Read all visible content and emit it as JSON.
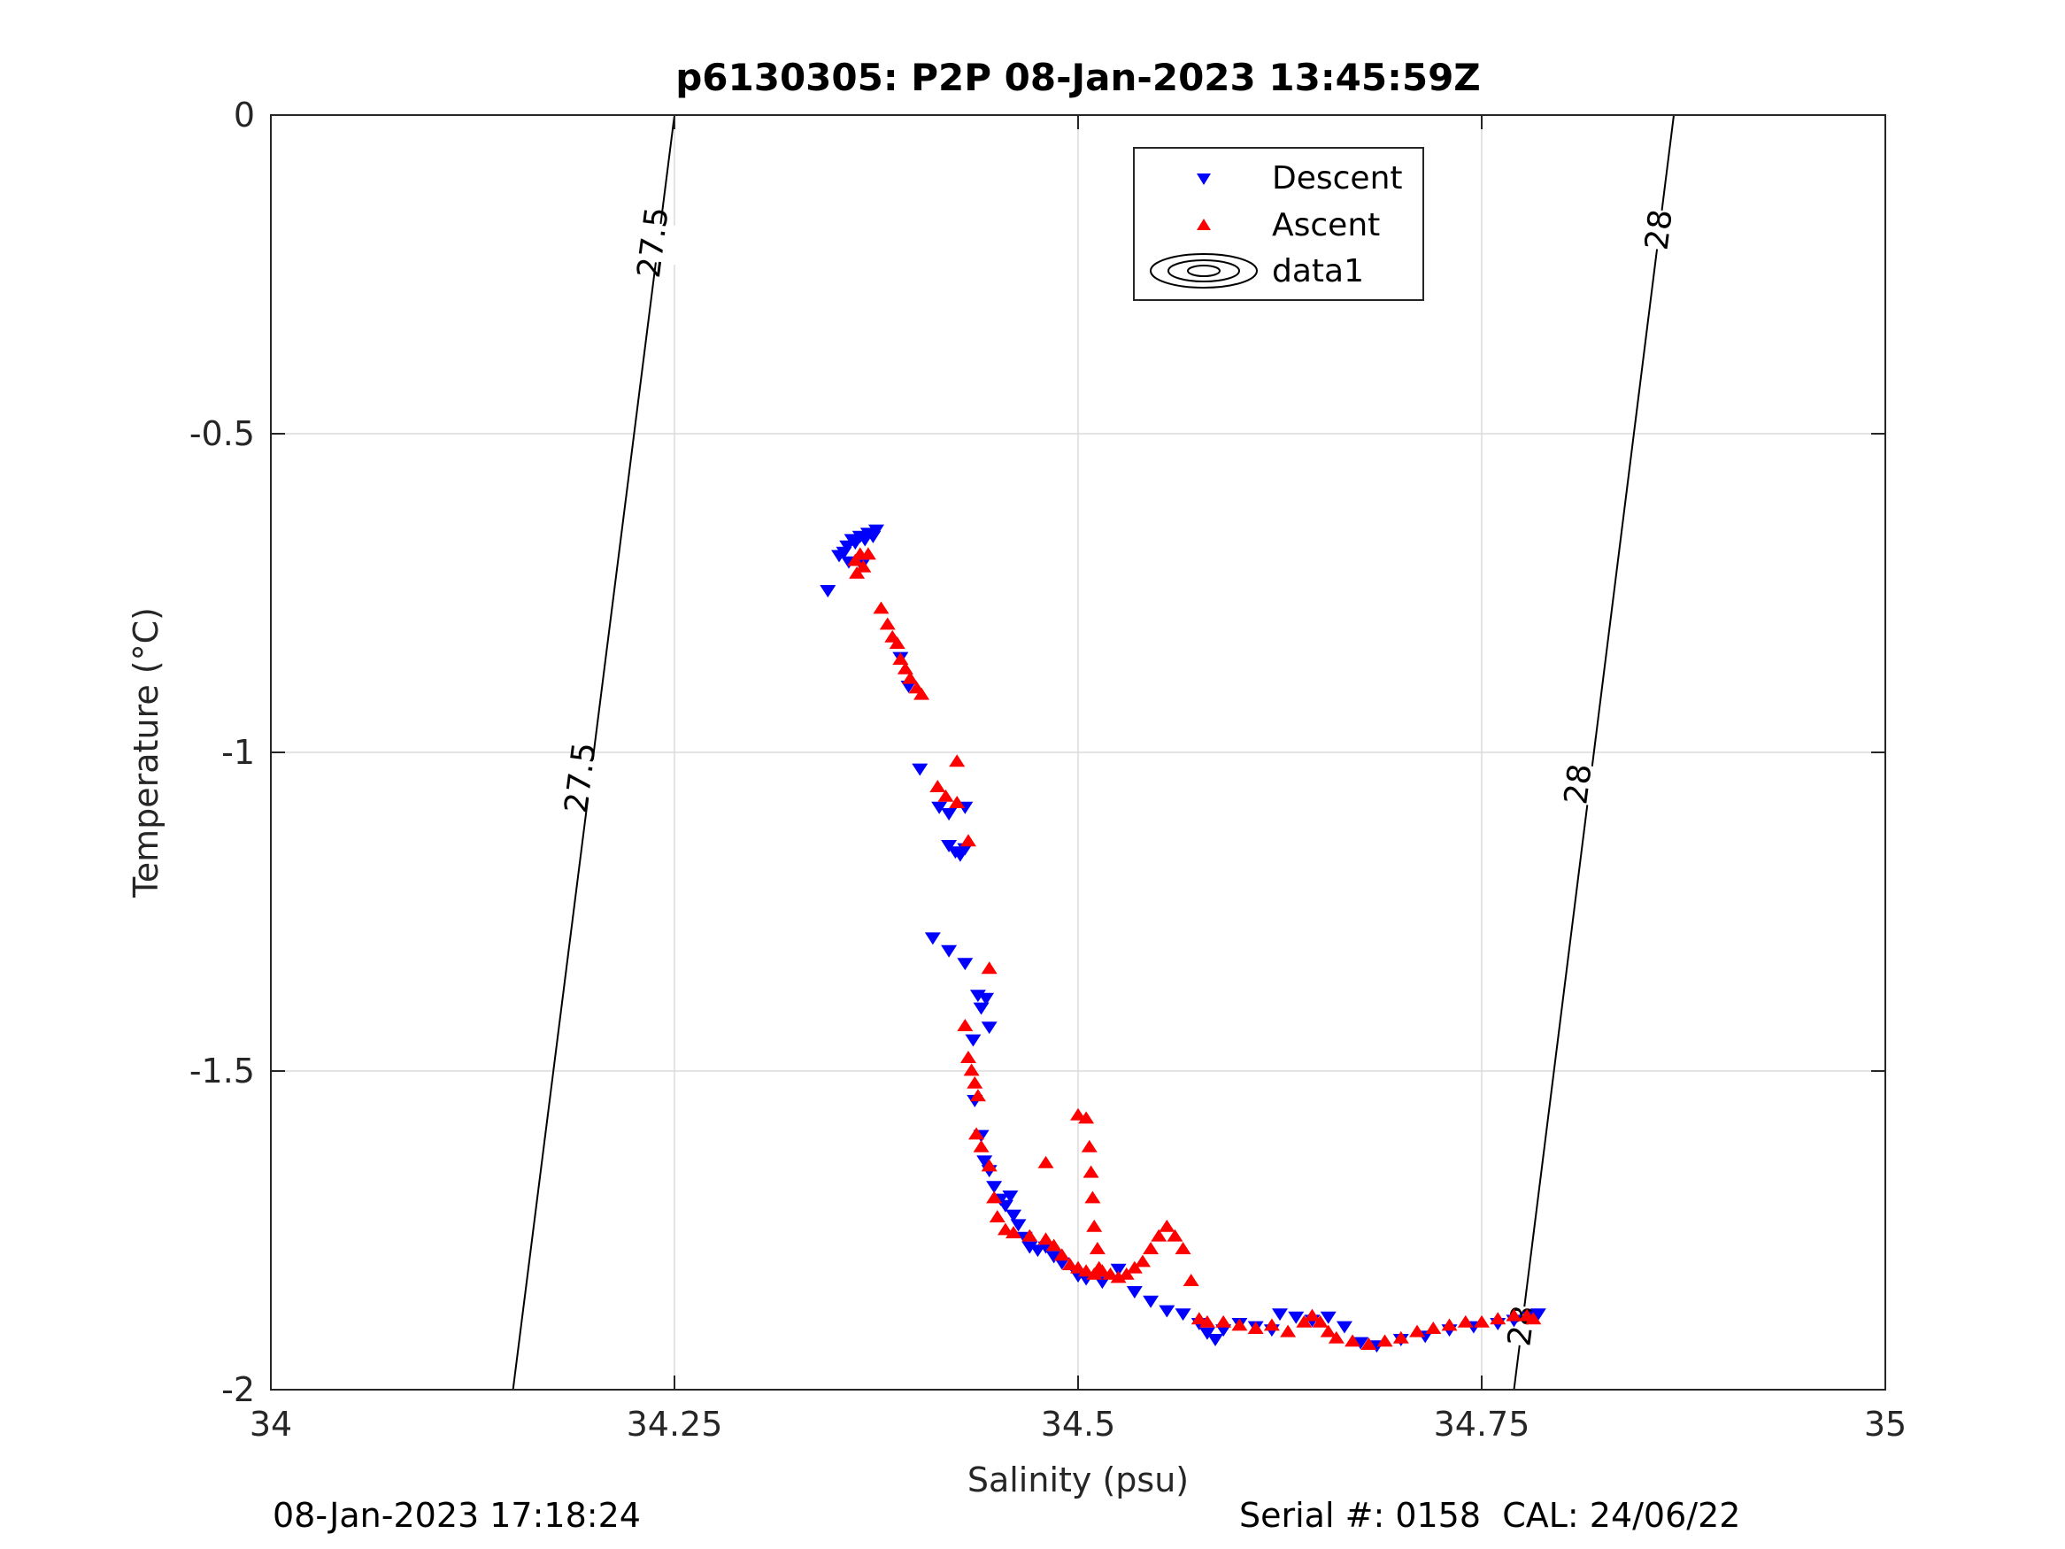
{
  "chart_data": {
    "type": "scatter",
    "title": "p6130305: P2P 08-Jan-2023 13:45:59Z",
    "xlabel": "Salinity (psu)",
    "ylabel": "Temperature (°C)",
    "xlim": [
      34,
      35
    ],
    "ylim": [
      -2,
      0
    ],
    "xticks": [
      34,
      34.25,
      34.5,
      34.75,
      35
    ],
    "xtick_labels": [
      "34",
      "34.25",
      "34.5",
      "34.75",
      "35"
    ],
    "yticks": [
      0,
      -0.5,
      -1,
      -1.5,
      -2
    ],
    "ytick_labels": [
      "0",
      "-0.5",
      "-1",
      "-1.5",
      "-2"
    ],
    "grid": true,
    "legend": {
      "placement": "top-center",
      "entries": [
        "Descent",
        "Ascent",
        "data1"
      ]
    },
    "colors": {
      "descent": "#0000ff",
      "ascent": "#ff0000",
      "contour": "#000000",
      "grid": "#dcdcdc"
    },
    "series": [
      {
        "name": "Descent",
        "marker": "triangle-down",
        "points": [
          [
            34.345,
            -0.745
          ],
          [
            34.352,
            -0.69
          ],
          [
            34.355,
            -0.685
          ],
          [
            34.357,
            -0.675
          ],
          [
            34.358,
            -0.7
          ],
          [
            34.36,
            -0.665
          ],
          [
            34.362,
            -0.67
          ],
          [
            34.365,
            -0.66
          ],
          [
            34.368,
            -0.665
          ],
          [
            34.37,
            -0.655
          ],
          [
            34.373,
            -0.66
          ],
          [
            34.375,
            -0.65
          ],
          [
            34.366,
            -0.705
          ],
          [
            34.39,
            -0.85
          ],
          [
            34.395,
            -0.895
          ],
          [
            34.402,
            -1.025
          ],
          [
            34.414,
            -1.085
          ],
          [
            34.42,
            -1.095
          ],
          [
            34.42,
            -1.145
          ],
          [
            34.424,
            -1.155
          ],
          [
            34.427,
            -1.16
          ],
          [
            34.43,
            -1.15
          ],
          [
            34.43,
            -1.085
          ],
          [
            34.41,
            -1.29
          ],
          [
            34.42,
            -1.31
          ],
          [
            34.43,
            -1.33
          ],
          [
            34.438,
            -1.38
          ],
          [
            34.443,
            -1.385
          ],
          [
            34.44,
            -1.4
          ],
          [
            34.445,
            -1.43
          ],
          [
            34.435,
            -1.45
          ],
          [
            34.436,
            -1.545
          ],
          [
            34.44,
            -1.6
          ],
          [
            34.442,
            -1.64
          ],
          [
            34.445,
            -1.655
          ],
          [
            34.448,
            -1.68
          ],
          [
            34.452,
            -1.7
          ],
          [
            34.455,
            -1.71
          ],
          [
            34.46,
            -1.725
          ],
          [
            34.458,
            -1.695
          ],
          [
            34.463,
            -1.74
          ],
          [
            34.467,
            -1.76
          ],
          [
            34.47,
            -1.775
          ],
          [
            34.475,
            -1.78
          ],
          [
            34.48,
            -1.775
          ],
          [
            34.485,
            -1.79
          ],
          [
            34.49,
            -1.8
          ],
          [
            34.5,
            -1.82
          ],
          [
            34.505,
            -1.825
          ],
          [
            34.515,
            -1.83
          ],
          [
            34.525,
            -1.81
          ],
          [
            34.535,
            -1.845
          ],
          [
            34.545,
            -1.86
          ],
          [
            34.555,
            -1.875
          ],
          [
            34.565,
            -1.88
          ],
          [
            34.575,
            -1.895
          ],
          [
            34.58,
            -1.91
          ],
          [
            34.585,
            -1.92
          ],
          [
            34.59,
            -1.905
          ],
          [
            34.6,
            -1.895
          ],
          [
            34.61,
            -1.9
          ],
          [
            34.62,
            -1.905
          ],
          [
            34.625,
            -1.88
          ],
          [
            34.635,
            -1.885
          ],
          [
            34.645,
            -1.89
          ],
          [
            34.655,
            -1.885
          ],
          [
            34.665,
            -1.9
          ],
          [
            34.675,
            -1.925
          ],
          [
            34.685,
            -1.93
          ],
          [
            34.7,
            -1.92
          ],
          [
            34.715,
            -1.915
          ],
          [
            34.73,
            -1.905
          ],
          [
            34.745,
            -1.9
          ],
          [
            34.76,
            -1.895
          ],
          [
            34.77,
            -1.89
          ],
          [
            34.78,
            -1.885
          ],
          [
            34.785,
            -1.88
          ]
        ]
      },
      {
        "name": "Ascent",
        "marker": "triangle-up",
        "points": [
          [
            34.362,
            -0.7
          ],
          [
            34.365,
            -0.69
          ],
          [
            34.363,
            -0.72
          ],
          [
            34.367,
            -0.71
          ],
          [
            34.37,
            -0.69
          ],
          [
            34.378,
            -0.775
          ],
          [
            34.382,
            -0.8
          ],
          [
            34.385,
            -0.82
          ],
          [
            34.388,
            -0.83
          ],
          [
            34.39,
            -0.855
          ],
          [
            34.393,
            -0.87
          ],
          [
            34.396,
            -0.885
          ],
          [
            34.4,
            -0.9
          ],
          [
            34.403,
            -0.91
          ],
          [
            34.425,
            -1.015
          ],
          [
            34.413,
            -1.055
          ],
          [
            34.418,
            -1.07
          ],
          [
            34.425,
            -1.08
          ],
          [
            34.432,
            -1.14
          ],
          [
            34.445,
            -1.34
          ],
          [
            34.43,
            -1.43
          ],
          [
            34.432,
            -1.48
          ],
          [
            34.434,
            -1.5
          ],
          [
            34.436,
            -1.52
          ],
          [
            34.438,
            -1.54
          ],
          [
            34.437,
            -1.6
          ],
          [
            34.44,
            -1.62
          ],
          [
            34.445,
            -1.65
          ],
          [
            34.448,
            -1.7
          ],
          [
            34.45,
            -1.73
          ],
          [
            34.455,
            -1.75
          ],
          [
            34.46,
            -1.755
          ],
          [
            34.47,
            -1.76
          ],
          [
            34.48,
            -1.765
          ],
          [
            34.485,
            -1.775
          ],
          [
            34.49,
            -1.79
          ],
          [
            34.495,
            -1.805
          ],
          [
            34.5,
            -1.81
          ],
          [
            34.505,
            -1.815
          ],
          [
            34.51,
            -1.82
          ],
          [
            34.515,
            -1.815
          ],
          [
            34.52,
            -1.82
          ],
          [
            34.525,
            -1.825
          ],
          [
            34.53,
            -1.82
          ],
          [
            34.535,
            -1.81
          ],
          [
            34.54,
            -1.8
          ],
          [
            34.545,
            -1.78
          ],
          [
            34.55,
            -1.76
          ],
          [
            34.555,
            -1.745
          ],
          [
            34.56,
            -1.76
          ],
          [
            34.565,
            -1.78
          ],
          [
            34.57,
            -1.83
          ],
          [
            34.575,
            -1.89
          ],
          [
            34.48,
            -1.645
          ],
          [
            34.5,
            -1.57
          ],
          [
            34.505,
            -1.575
          ],
          [
            34.507,
            -1.62
          ],
          [
            34.508,
            -1.66
          ],
          [
            34.509,
            -1.7
          ],
          [
            34.51,
            -1.745
          ],
          [
            34.512,
            -1.78
          ],
          [
            34.513,
            -1.81
          ],
          [
            34.58,
            -1.895
          ],
          [
            34.59,
            -1.895
          ],
          [
            34.6,
            -1.9
          ],
          [
            34.61,
            -1.905
          ],
          [
            34.62,
            -1.9
          ],
          [
            34.63,
            -1.91
          ],
          [
            34.64,
            -1.895
          ],
          [
            34.645,
            -1.885
          ],
          [
            34.65,
            -1.895
          ],
          [
            34.655,
            -1.91
          ],
          [
            34.66,
            -1.92
          ],
          [
            34.67,
            -1.925
          ],
          [
            34.68,
            -1.93
          ],
          [
            34.69,
            -1.925
          ],
          [
            34.7,
            -1.92
          ],
          [
            34.71,
            -1.91
          ],
          [
            34.72,
            -1.905
          ],
          [
            34.73,
            -1.9
          ],
          [
            34.74,
            -1.895
          ],
          [
            34.75,
            -1.895
          ],
          [
            34.76,
            -1.89
          ],
          [
            34.77,
            -1.885
          ],
          [
            34.778,
            -1.885
          ],
          [
            34.782,
            -1.89
          ]
        ]
      }
    ],
    "contours": [
      {
        "level_label": "27.5",
        "path": [
          [
            34.25,
            0
          ],
          [
            34.15,
            -2
          ]
        ],
        "label_positions": [
          [
            34.237,
            -0.2
          ],
          [
            34.192,
            -1.04
          ]
        ]
      },
      {
        "level_label": "28",
        "path": [
          [
            34.869,
            0
          ],
          [
            34.77,
            -2
          ]
        ],
        "label_positions": [
          [
            34.86,
            -0.18
          ],
          [
            34.81,
            -1.05
          ],
          [
            34.775,
            -1.9
          ]
        ]
      }
    ]
  },
  "footer": {
    "left": "08-Jan-2023 17:18:24",
    "right": "Serial #: 0158  CAL: 24/06/22"
  }
}
